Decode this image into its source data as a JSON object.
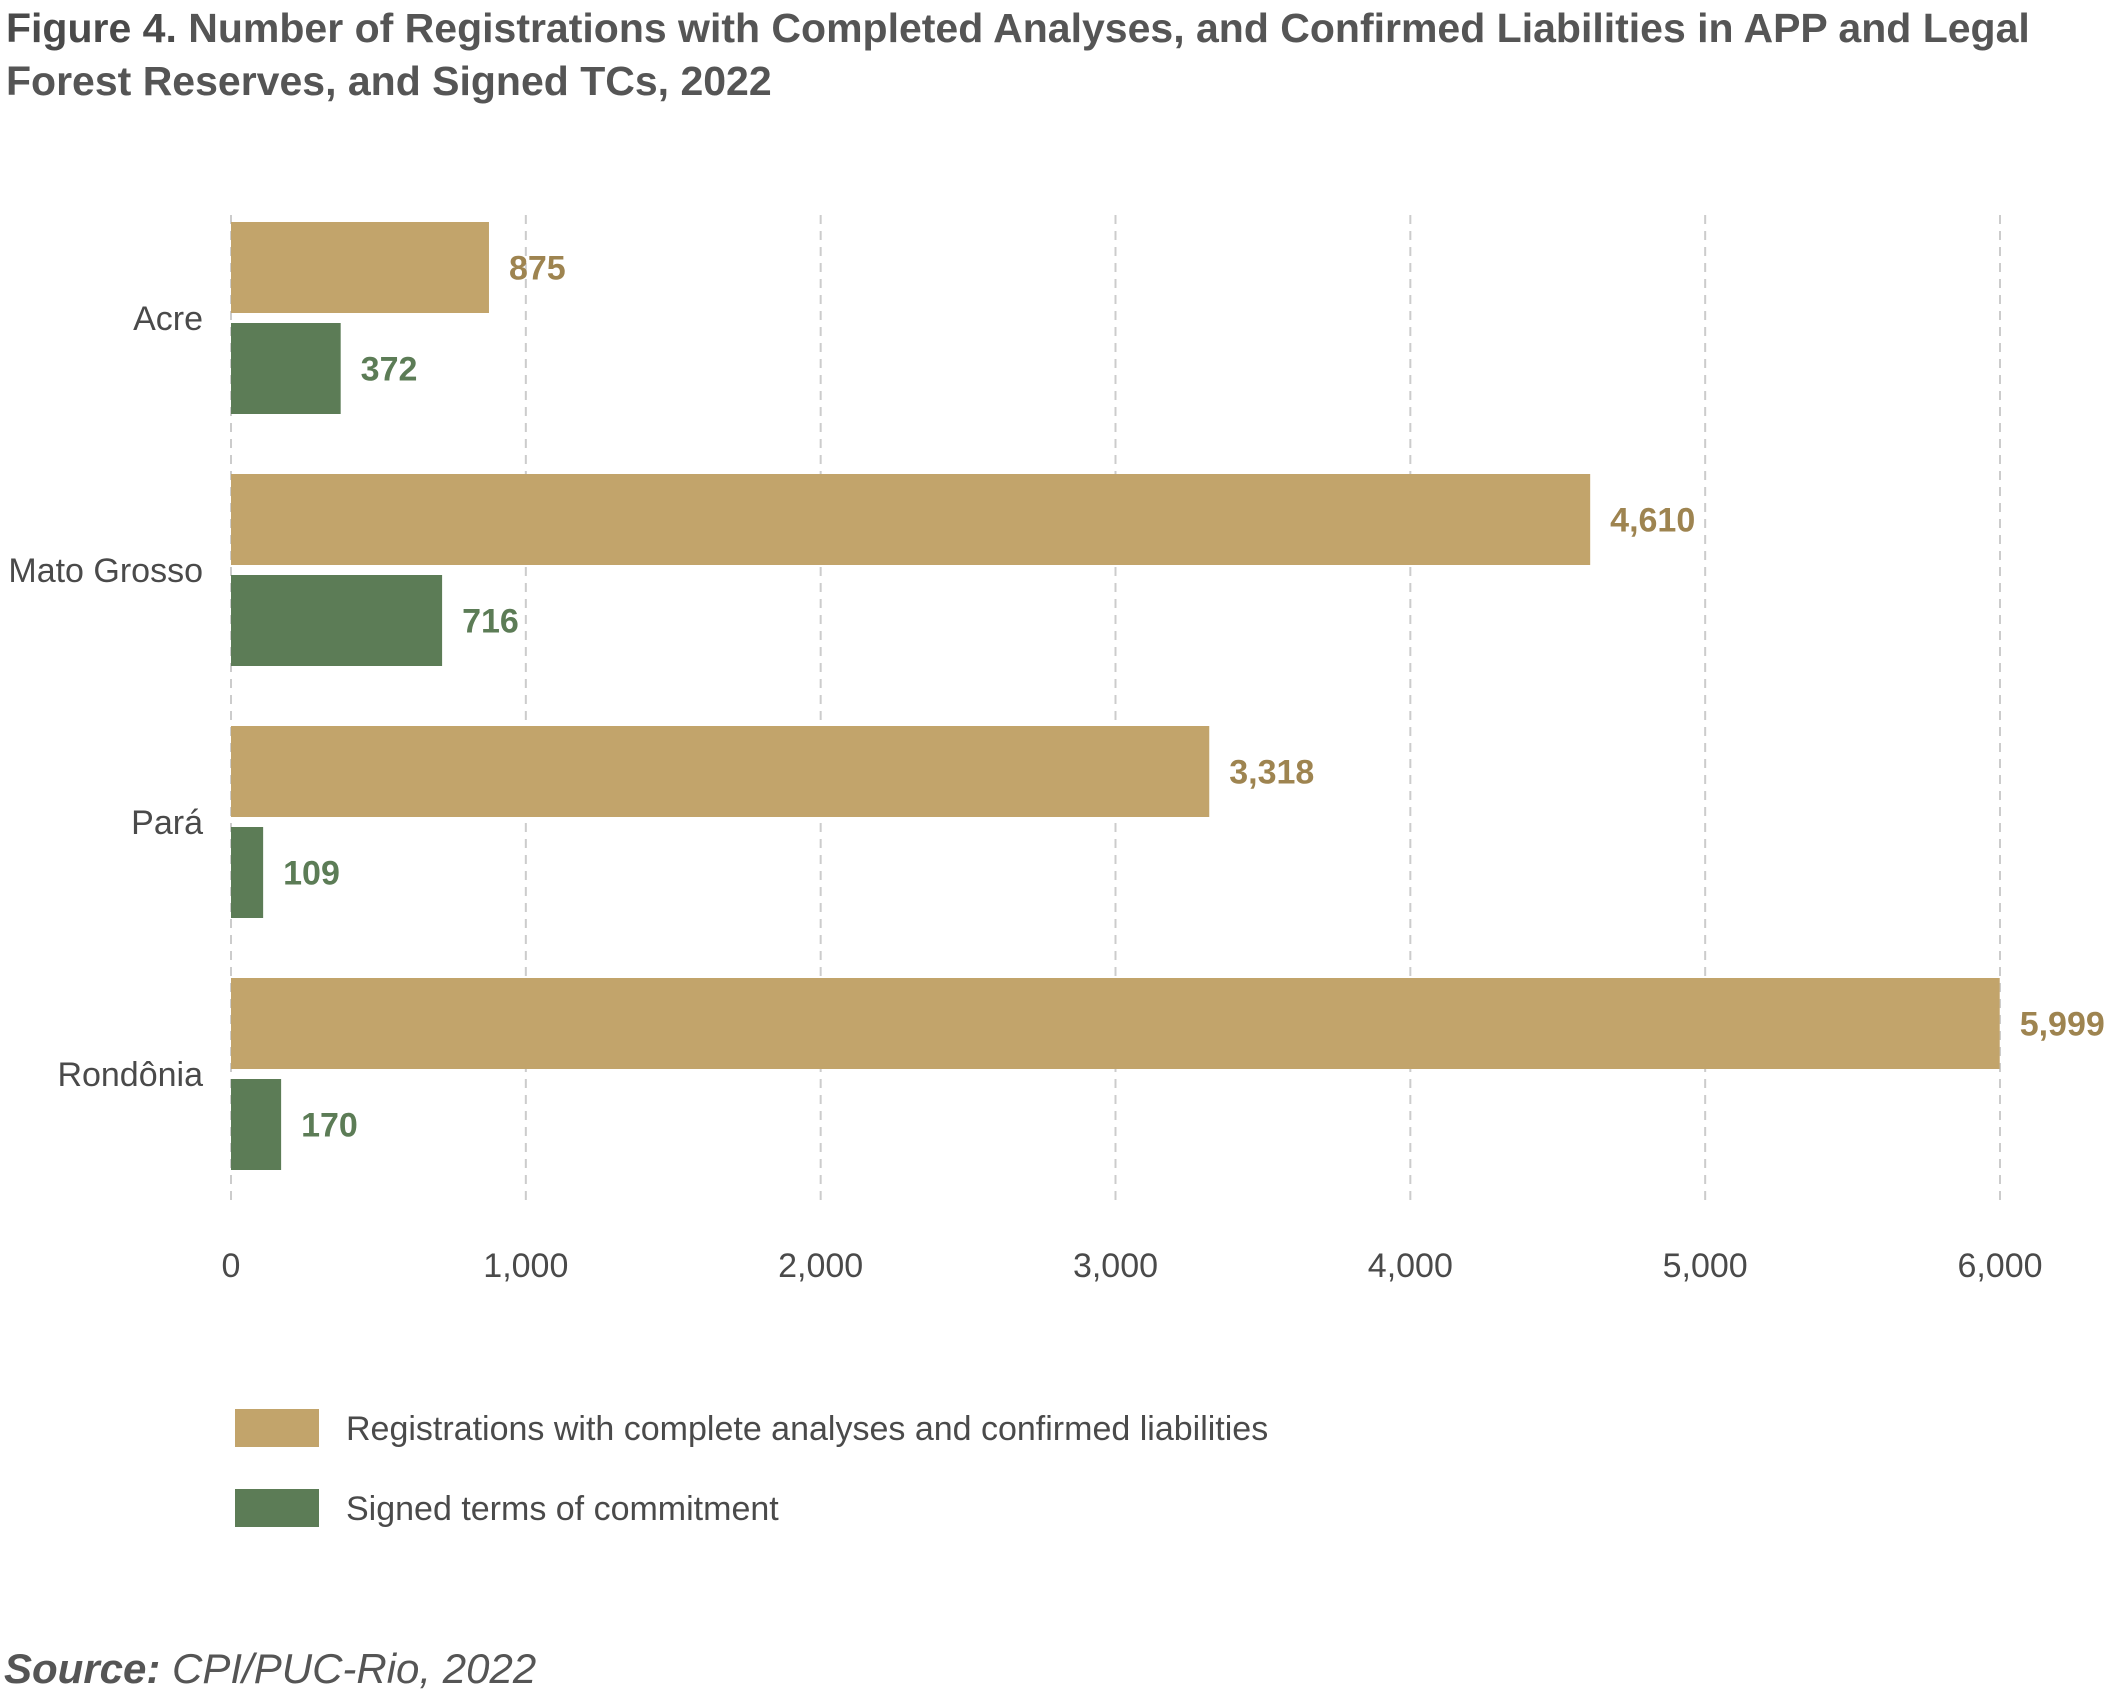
{
  "figure": {
    "label": "Figure 4.",
    "title": "Number of Registrations with Completed Analyses, and Confirmed Liabilities in APP and Legal Forest Reserves, and Signed TCs, 2022"
  },
  "source": {
    "label": "Source:",
    "text": "CPI/PUC-Rio, 2022"
  },
  "colors": {
    "registrations": "#c2a46b",
    "registrations_label": "#9e8450",
    "terms": "#5c7c56",
    "terms_label": "#5c7c56",
    "grid": "#cccccc",
    "axis_text": "#4a4a4a"
  },
  "chart_data": {
    "type": "bar",
    "orientation": "horizontal",
    "categories": [
      "Acre",
      "Mato Grosso",
      "Pará",
      "Rondônia"
    ],
    "series": [
      {
        "name": "Registrations with complete analyses and confirmed liabilities",
        "values": [
          875,
          4610,
          3318,
          5999
        ],
        "labels": [
          "875",
          "4,610",
          "3,318",
          "5,999"
        ]
      },
      {
        "name": "Signed terms of commitment",
        "values": [
          372,
          716,
          109,
          170
        ],
        "labels": [
          "372",
          "716",
          "109",
          "170"
        ]
      }
    ],
    "xlim": [
      0,
      6000
    ],
    "xticks": [
      0,
      1000,
      2000,
      3000,
      4000,
      5000,
      6000
    ],
    "xtick_labels": [
      "0",
      "1,000",
      "2,000",
      "3,000",
      "4,000",
      "5,000",
      "6,000"
    ],
    "grid": "vertical dashed",
    "legend_position": "bottom-left",
    "title": "Number of Registrations with Completed Analyses, and Confirmed Liabilities in APP and Legal Forest Reserves, and Signed TCs, 2022",
    "xlabel": "",
    "ylabel": ""
  }
}
